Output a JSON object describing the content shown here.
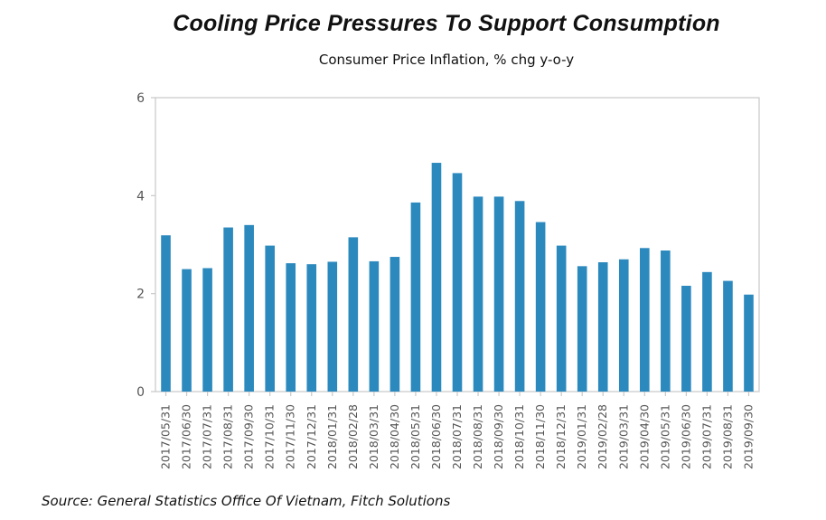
{
  "header": {
    "title": "Cooling Price Pressures To Support Consumption",
    "subtitle": "Consumer Price Inflation, % chg y-o-y"
  },
  "footer": {
    "source": "Source: General Statistics Office Of Vietnam, Fitch Solutions"
  },
  "colors": {
    "bar": "#2b89be",
    "axis": "#c8c8c8",
    "tick_text": "#555555"
  },
  "chart_data": {
    "type": "bar",
    "title": "Cooling Price Pressures To Support Consumption",
    "subtitle": "Consumer Price Inflation, % chg y-o-y",
    "xlabel": "",
    "ylabel": "",
    "ylim": [
      0,
      6
    ],
    "yticks": [
      0,
      2,
      4,
      6
    ],
    "grid": false,
    "legend": "none",
    "categories": [
      "2017/05/31",
      "2017/06/30",
      "2017/07/31",
      "2017/08/31",
      "2017/09/30",
      "2017/10/31",
      "2017/11/30",
      "2017/12/31",
      "2018/01/31",
      "2018/02/28",
      "2018/03/31",
      "2018/04/30",
      "2018/05/31",
      "2018/06/30",
      "2018/07/31",
      "2018/08/31",
      "2018/09/30",
      "2018/10/31",
      "2018/11/30",
      "2018/12/31",
      "2019/01/31",
      "2019/02/28",
      "2019/03/31",
      "2019/04/30",
      "2019/05/31",
      "2019/06/30",
      "2019/07/31",
      "2019/08/31",
      "2019/09/30"
    ],
    "values": [
      3.19,
      2.5,
      2.52,
      3.35,
      3.4,
      2.98,
      2.62,
      2.6,
      2.65,
      3.15,
      2.66,
      2.75,
      3.86,
      4.67,
      4.46,
      3.98,
      3.98,
      3.89,
      3.46,
      2.98,
      2.56,
      2.64,
      2.7,
      2.93,
      2.88,
      2.16,
      2.44,
      2.26,
      1.98
    ]
  }
}
